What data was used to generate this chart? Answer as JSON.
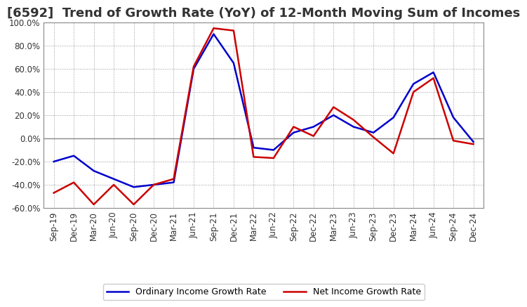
{
  "title": "[6592]  Trend of Growth Rate (YoY) of 12-Month Moving Sum of Incomes",
  "ylim": [
    -0.6,
    1.0
  ],
  "yticks": [
    -0.6,
    -0.4,
    -0.2,
    0.0,
    0.2,
    0.4,
    0.6,
    0.8,
    1.0
  ],
  "x_labels": [
    "Sep-19",
    "Dec-19",
    "Mar-20",
    "Jun-20",
    "Sep-20",
    "Dec-20",
    "Mar-21",
    "Jun-21",
    "Sep-21",
    "Dec-21",
    "Mar-22",
    "Jun-22",
    "Sep-22",
    "Dec-22",
    "Mar-23",
    "Jun-23",
    "Sep-23",
    "Dec-23",
    "Mar-24",
    "Jun-24",
    "Sep-24",
    "Dec-24"
  ],
  "ordinary_income": [
    -0.2,
    -0.15,
    -0.28,
    -0.35,
    -0.42,
    -0.4,
    -0.38,
    0.6,
    0.9,
    0.65,
    -0.08,
    -0.1,
    0.05,
    0.1,
    0.2,
    0.1,
    0.05,
    0.18,
    0.47,
    0.57,
    0.18,
    -0.03
  ],
  "net_income": [
    -0.47,
    -0.38,
    -0.57,
    -0.4,
    -0.57,
    -0.4,
    -0.35,
    0.62,
    0.95,
    0.93,
    -0.16,
    -0.17,
    0.1,
    0.02,
    0.27,
    0.16,
    0.01,
    -0.13,
    0.4,
    0.52,
    -0.02,
    -0.05
  ],
  "ordinary_color": "#0000CC",
  "net_color": "#CC0000",
  "background_color": "#FFFFFF",
  "grid_color": "#999999",
  "title_fontsize": 13,
  "title_color": "#333333",
  "tick_fontsize": 8.5,
  "legend_labels": [
    "Ordinary Income Growth Rate",
    "Net Income Growth Rate"
  ],
  "line_width": 1.8
}
